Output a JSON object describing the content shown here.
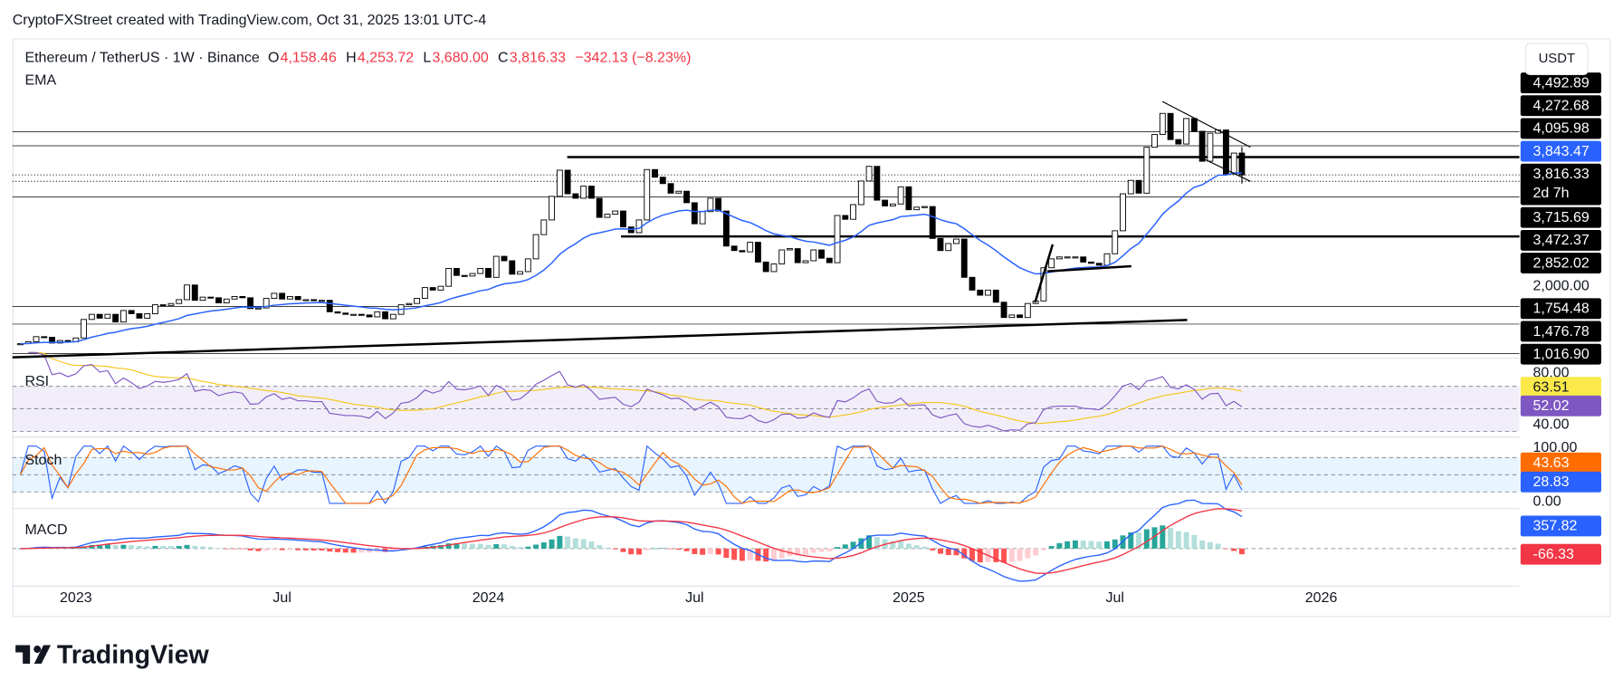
{
  "watermark": "CryptoFXStreet created with TradingView.com, Oct 31, 2025 13:01 UTC-4",
  "brand": "TradingView",
  "chart_data": {
    "type": "candlestick",
    "title": "Ethereum / TetherUS · 1W · Binance",
    "ohlc": [
      {
        "key": "O",
        "value": 4158.46,
        "label": "4,158.46"
      },
      {
        "key": "H",
        "value": 4253.72,
        "label": "4,253.72"
      },
      {
        "key": "L",
        "value": 3680,
        "label": "3,680.00"
      },
      {
        "key": "C",
        "value": 3816.33,
        "label": "3,816.33"
      }
    ],
    "change": "−342.13 (−8.23%)",
    "currency": "USDT",
    "up_color": "#ffffff",
    "down_color": "#000000",
    "wick_color": "#000000",
    "close": [
      1170,
      1200,
      1280,
      1270,
      1180,
      1220,
      1200,
      1260,
      1550,
      1630,
      1570,
      1630,
      1510,
      1690,
      1640,
      1570,
      1640,
      1780,
      1770,
      1800,
      1860,
      2090,
      1850,
      1900,
      1890,
      1810,
      1870,
      1910,
      1890,
      1720,
      1730,
      1880,
      1960,
      1870,
      1910,
      1860,
      1860,
      1850,
      1850,
      1670,
      1650,
      1630,
      1630,
      1620,
      1590,
      1670,
      1560,
      1630,
      1780,
      1800,
      1880,
      2050,
      2010,
      2070,
      2350,
      2240,
      2230,
      2270,
      2350,
      2210,
      2540,
      2470,
      2260,
      2300,
      2500,
      2880,
      3110,
      3480,
      3890,
      3520,
      3450,
      3640,
      3450,
      3150,
      3200,
      3250,
      3000,
      2910,
      3110,
      3900,
      3780,
      3680,
      3530,
      3560,
      3380,
      3050,
      3240,
      3450,
      3250,
      2700,
      2630,
      2610,
      2760,
      2450,
      2300,
      2420,
      2640,
      2660,
      2440,
      2470,
      2640,
      2510,
      2440,
      3180,
      3120,
      3350,
      3720,
      3950,
      3420,
      3330,
      3360,
      3630,
      3270,
      3310,
      3320,
      2820,
      2630,
      2740,
      2810,
      2210,
      2010,
      1930,
      2010,
      1820,
      1580,
      1620,
      1580,
      1800,
      1840,
      2360,
      2500,
      2530,
      2530,
      2530,
      2450,
      2430,
      2400,
      2580,
      2940,
      3520,
      3730,
      3530,
      4250,
      4450,
      4780,
      4370,
      4300,
      4700,
      4500,
      4030,
      4470,
      4520,
      3830,
      4158.46,
      3816.33
    ],
    "xlim": [
      -1,
      189
    ],
    "xticks": [
      {
        "value": 7,
        "label": "2023"
      },
      {
        "value": 33,
        "label": "Jul"
      },
      {
        "value": 59,
        "label": "2024"
      },
      {
        "value": 85,
        "label": "Jul"
      },
      {
        "value": 112,
        "label": "2025"
      },
      {
        "value": 138,
        "label": "Jul"
      },
      {
        "value": 164,
        "label": "2026"
      }
    ],
    "ylim": [
      957,
      5908
    ],
    "price_labels": [
      {
        "value": 4492.89,
        "label": "4,492.89",
        "bg": "#000000",
        "fg": "#ffffff",
        "line": "thin"
      },
      {
        "value": 4272.68,
        "label": "4,272.68",
        "bg": "#000000",
        "fg": "#ffffff",
        "line": "thin"
      },
      {
        "value": 4095.98,
        "label": "4,095.98",
        "bg": "#000000",
        "fg": "#ffffff",
        "line": "thick"
      },
      {
        "value": 3843.47,
        "label": "3,843.47",
        "bg": "#2962ff",
        "fg": "#ffffff",
        "line": "none"
      },
      {
        "value": 3816.33,
        "label": "3,816.33",
        "bg": "#000000",
        "fg": "#ffffff",
        "line": "dotted",
        "countdown": "2d 7h"
      },
      {
        "value": 3715.69,
        "label": "3,715.69",
        "bg": "#000000",
        "fg": "#ffffff",
        "line": "dotted"
      },
      {
        "value": 3472.37,
        "label": "3,472.37",
        "bg": "#000000",
        "fg": "#ffffff",
        "line": "thin"
      },
      {
        "value": 2852.02,
        "label": "2,852.02",
        "bg": "#000000",
        "fg": "#ffffff",
        "line": "thick"
      },
      {
        "value": 2000,
        "label": "2,000.00",
        "bg": "none",
        "fg": "#131722",
        "line": "none"
      },
      {
        "value": 1754.48,
        "label": "1,754.48",
        "bg": "#000000",
        "fg": "#ffffff",
        "line": "thin"
      },
      {
        "value": 1476.78,
        "label": "1,476.78",
        "bg": "#000000",
        "fg": "#ffffff",
        "line": "thin"
      },
      {
        "value": 1016.9,
        "label": "1,016.90",
        "bg": "#000000",
        "fg": "#ffffff",
        "line": "thin"
      }
    ],
    "ema": {
      "label": "EMA",
      "length": 20,
      "color": "#2962ff"
    },
    "rsi": {
      "label": "RSI",
      "length": 14,
      "ma_length": 14,
      "color": "#7e57c2",
      "ma_color": "#f5c518",
      "band_lines": [
        70,
        50,
        30
      ],
      "ylim": [
        26,
        93
      ],
      "labels": [
        {
          "value": 80,
          "label": "80.00",
          "bg": "none",
          "fg": "#131722"
        },
        {
          "value": 63.51,
          "bg": "#fbe94a",
          "fg": "#131722"
        },
        {
          "value": 52.02,
          "bg": "#7e57c2",
          "fg": "#ffffff"
        },
        {
          "value": 40,
          "label": "40.00",
          "bg": "none",
          "fg": "#131722"
        }
      ]
    },
    "stoch": {
      "label": "Stoch",
      "length": 14,
      "smooth": 3,
      "k_color": "#2962ff",
      "d_color": "#ff6d00",
      "band_lines": [
        80,
        50,
        20
      ],
      "ylim": [
        -7,
        114
      ],
      "labels": [
        {
          "value": 100,
          "label": "100.00",
          "bg": "none",
          "fg": "#131722"
        },
        {
          "value": 43.63,
          "bg": "#ff6d00",
          "fg": "#ffffff"
        },
        {
          "value": 28.83,
          "bg": "#2962ff",
          "fg": "#ffffff"
        },
        {
          "value": 0,
          "label": "0.00",
          "bg": "none",
          "fg": "#131722"
        }
      ]
    },
    "macd": {
      "label": "MACD",
      "fast": 12,
      "slow": 26,
      "signal": 9,
      "color": "#2962ff",
      "signal_color": "#f23645",
      "hist_colors": [
        "#26a69a",
        "#b2dfdb",
        "#ffcdd2",
        "#ff5252"
      ],
      "ylim": [
        -420,
        450
      ],
      "labels": [
        {
          "value": 357.82,
          "bg": "#2962ff",
          "fg": "#ffffff"
        },
        {
          "value": -66.33,
          "bg": "#f23645",
          "fg": "#ffffff"
        }
      ]
    }
  }
}
